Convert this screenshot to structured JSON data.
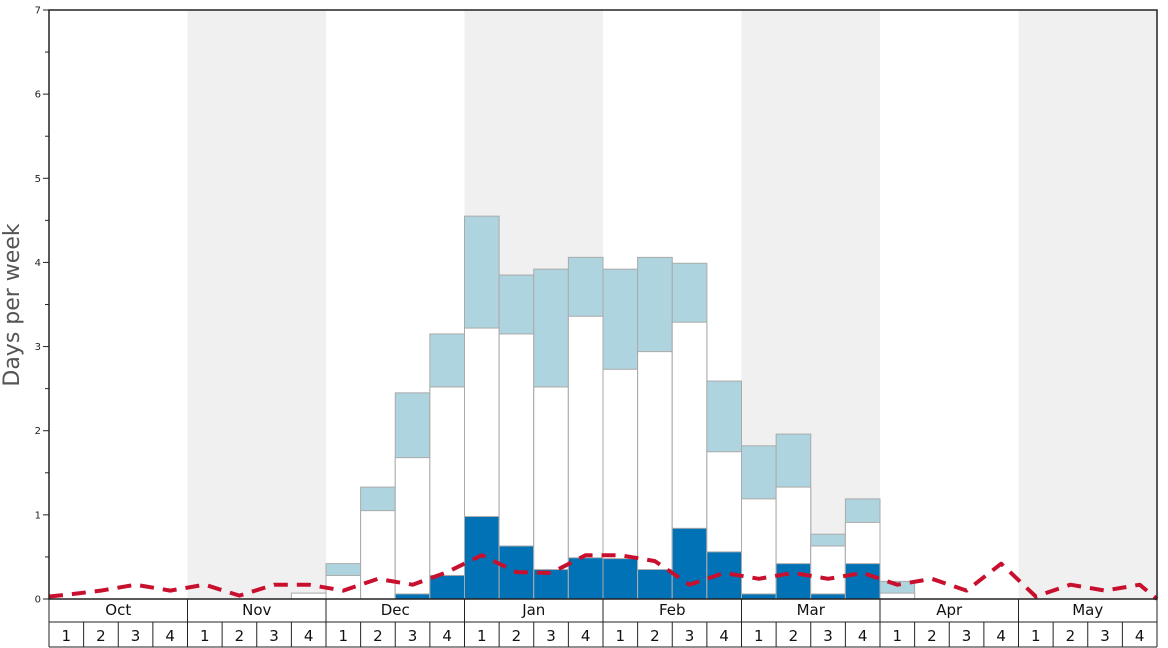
{
  "chart_data": {
    "type": "bar",
    "ylabel": "Days per week",
    "ylim": [
      0,
      7
    ],
    "yticks": [
      "0",
      "1",
      "2",
      "3",
      "4",
      "5",
      "6",
      "7"
    ],
    "months": [
      "Oct",
      "Nov",
      "Dec",
      "Jan",
      "Feb",
      "Mar",
      "Apr",
      "May"
    ],
    "week_labels": [
      "1",
      "2",
      "3",
      "4"
    ],
    "grid": false,
    "colors": {
      "dark": "#0072b5",
      "white": "#ffffff",
      "light": "#aed4e0",
      "line": "#c8102e",
      "band": "#f0f0f0",
      "bar_stroke": "#aaaaaa"
    },
    "series": [
      {
        "color": "#0072b5",
        "values": [
          0,
          0,
          0,
          0,
          0,
          0,
          0,
          0,
          0,
          0,
          0.06,
          0.28,
          0.98,
          0.63,
          0.35,
          0.49,
          0.48,
          0.35,
          0.84,
          0.56,
          0.06,
          0.42,
          0.06,
          0.42,
          0,
          0,
          0,
          0,
          0,
          0,
          0,
          0
        ]
      },
      {
        "color": "#ffffff",
        "values": [
          0,
          0,
          0,
          0,
          0,
          0,
          0,
          0.07,
          0.28,
          1.05,
          1.68,
          2.52,
          3.22,
          3.15,
          2.52,
          3.36,
          2.73,
          2.94,
          3.29,
          1.75,
          1.19,
          1.33,
          0.63,
          0.91,
          0.07,
          0,
          0,
          0,
          0,
          0,
          0,
          0
        ]
      },
      {
        "color": "#aed4e0",
        "values": [
          0,
          0,
          0,
          0,
          0,
          0,
          0,
          0,
          0.42,
          1.33,
          2.45,
          3.15,
          4.55,
          3.85,
          3.92,
          4.06,
          3.92,
          4.06,
          3.99,
          2.59,
          1.82,
          1.96,
          0.77,
          1.19,
          0.21,
          0,
          0,
          0,
          0,
          0,
          0,
          0
        ]
      },
      {
        "color": "#c8102e",
        "values": [
          0.05,
          0.1,
          0.17,
          0.1,
          0.17,
          0.04,
          0.17,
          0.17,
          0.1,
          0.24,
          0.17,
          0.32,
          0.52,
          0.32,
          0.31,
          0.52,
          0.52,
          0.45,
          0.17,
          0.31,
          0.24,
          0.31,
          0.24,
          0.31,
          0.17,
          0.24,
          0.1,
          0.42,
          0.03,
          0.17,
          0.1,
          0.17
        ]
      }
    ]
  }
}
